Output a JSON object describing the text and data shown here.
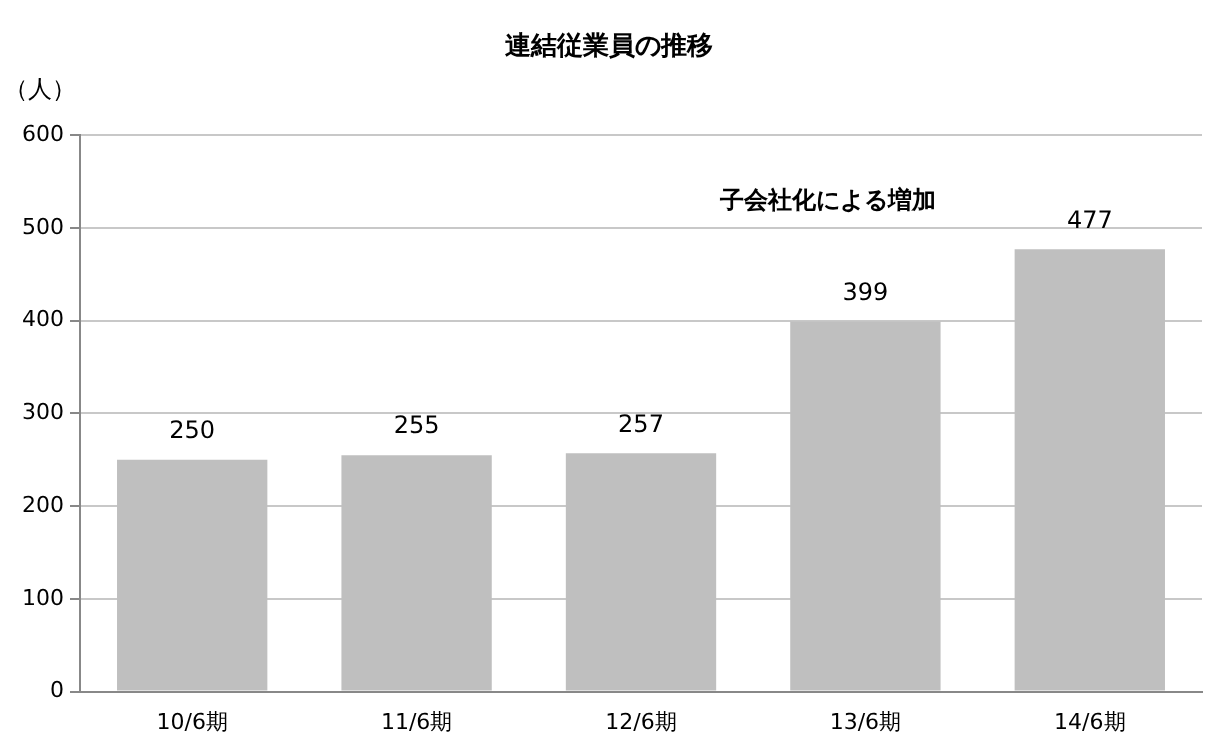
{
  "chart_data": {
    "type": "bar",
    "title": "連結従業員の推移",
    "ylabel": "（人）",
    "categories": [
      "10/6期",
      "11/6期",
      "12/6期",
      "13/6期",
      "14/6期"
    ],
    "values": [
      250,
      255,
      257,
      399,
      477
    ],
    "color": "#bfbfbf",
    "ylim": [
      0,
      600
    ],
    "yticks": [
      0,
      100,
      200,
      300,
      400,
      500,
      600
    ],
    "grid": "y",
    "data_labels": true,
    "annotations": [
      "子会社化による増加"
    ]
  }
}
